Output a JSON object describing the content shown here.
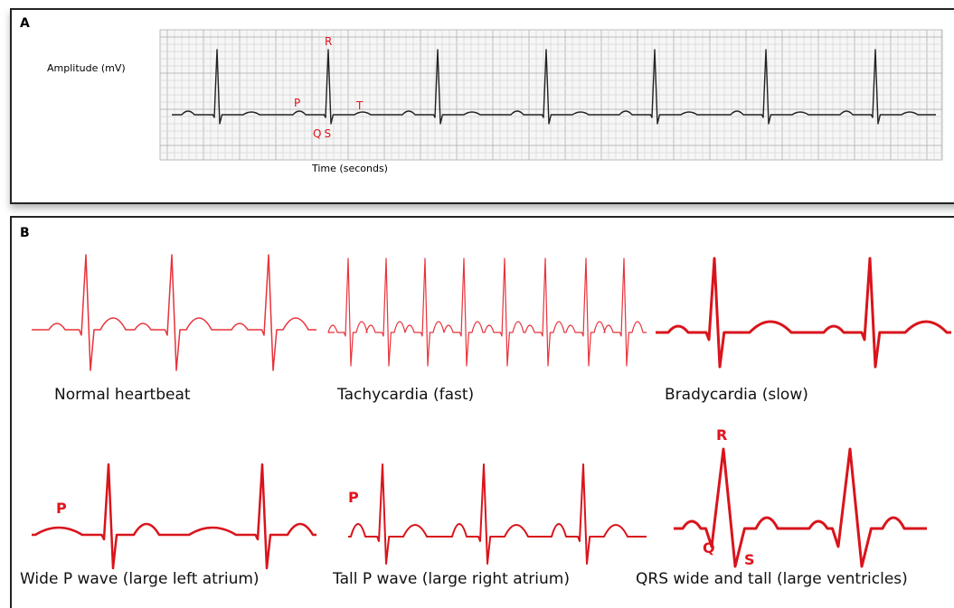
{
  "panel_a": {
    "label": "A",
    "y_axis_label": "Amplitude (mV)",
    "x_axis_label": "Time (seconds)",
    "wave_labels": {
      "r": "R",
      "p": "P",
      "t": "T",
      "qs": "QS"
    }
  },
  "panel_b": {
    "label": "B",
    "traces": [
      {
        "caption": "Normal heartbeat"
      },
      {
        "caption": "Tachycardia (fast)"
      },
      {
        "caption": "Bradycardia (slow)"
      },
      {
        "caption": "Wide P wave (large left atrium)",
        "markers": [
          "P"
        ]
      },
      {
        "caption": "Tall P wave (large right atrium)",
        "markers": [
          "P"
        ]
      },
      {
        "caption": "QRS wide and tall (large ventricles)",
        "markers": [
          "R",
          "Q",
          "S"
        ]
      }
    ]
  }
}
